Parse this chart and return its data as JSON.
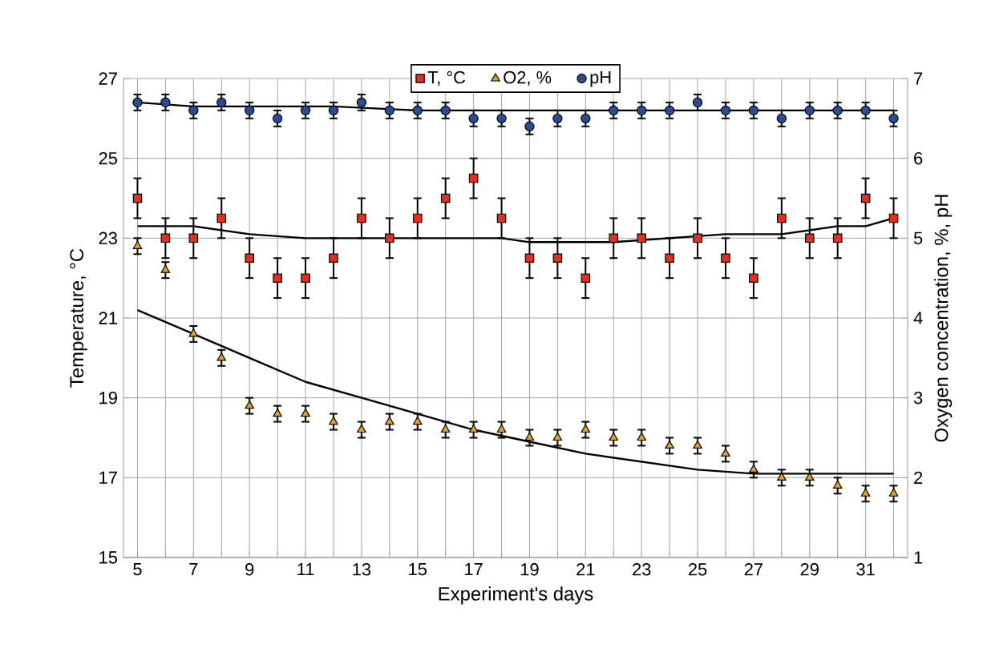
{
  "chart_data": {
    "type": "scatter",
    "xlabel": "Experiment's days",
    "ylabel": "Temperature, °C",
    "y2label": "Oxygen concentration, %, pH",
    "x": [
      5,
      6,
      7,
      8,
      9,
      10,
      11,
      12,
      13,
      14,
      15,
      16,
      17,
      18,
      19,
      20,
      21,
      22,
      23,
      24,
      25,
      26,
      27,
      28,
      29,
      30,
      31,
      32
    ],
    "series": [
      {
        "name": "T, °C",
        "color": "#e03020",
        "marker": "square",
        "values": [
          24,
          23,
          23,
          23.5,
          22.5,
          22,
          22,
          22.5,
          23.5,
          23,
          23.5,
          24,
          24.5,
          23.5,
          22.5,
          22.5,
          22,
          23,
          23,
          22.5,
          23,
          22.5,
          22,
          23.5,
          23,
          23,
          24,
          23.5
        ],
        "errors": [
          0.5,
          0.5,
          0.5,
          0.5,
          0.5,
          0.5,
          0.5,
          0.5,
          0.5,
          0.5,
          0.5,
          0.5,
          0.5,
          0.5,
          0.5,
          0.5,
          0.5,
          0.5,
          0.5,
          0.5,
          0.5,
          0.5,
          0.5,
          0.5,
          0.5,
          0.5,
          0.5,
          0.5
        ]
      },
      {
        "name": "O2, %",
        "color": "#e8a020",
        "marker": "triangle",
        "axis": "y2",
        "values": [
          4.9,
          4.6,
          3.8,
          3.5,
          2.9,
          2.8,
          2.8,
          2.7,
          2.6,
          2.7,
          2.7,
          2.6,
          2.6,
          2.6,
          2.5,
          2.5,
          2.6,
          2.5,
          2.5,
          2.4,
          2.4,
          2.3,
          2.1,
          2.0,
          2.0,
          1.9,
          1.8,
          1.8
        ],
        "errors": [
          0.1,
          0.1,
          0.1,
          0.1,
          0.1,
          0.1,
          0.1,
          0.1,
          0.1,
          0.1,
          0.1,
          0.1,
          0.1,
          0.1,
          0.1,
          0.1,
          0.1,
          0.1,
          0.1,
          0.1,
          0.1,
          0.1,
          0.1,
          0.1,
          0.1,
          0.1,
          0.1,
          0.1
        ]
      },
      {
        "name": "pH",
        "color": "#2a4a9a",
        "marker": "circle",
        "axis": "y2",
        "values": [
          6.7,
          6.7,
          6.6,
          6.7,
          6.6,
          6.5,
          6.6,
          6.6,
          6.7,
          6.6,
          6.6,
          6.6,
          6.5,
          6.5,
          6.4,
          6.5,
          6.5,
          6.6,
          6.6,
          6.6,
          6.7,
          6.6,
          6.6,
          6.5,
          6.6,
          6.6,
          6.6,
          6.5
        ],
        "errors": [
          0.1,
          0.1,
          0.1,
          0.1,
          0.1,
          0.1,
          0.1,
          0.1,
          0.1,
          0.1,
          0.1,
          0.1,
          0.1,
          0.1,
          0.1,
          0.1,
          0.1,
          0.1,
          0.1,
          0.1,
          0.1,
          0.1,
          0.1,
          0.1,
          0.1,
          0.1,
          0.1,
          0.1
        ]
      },
      {
        "type": "line",
        "color": "#000000",
        "marker": "none",
        "x": [
          5,
          7,
          9,
          11,
          13,
          18,
          19,
          22,
          24,
          26,
          28,
          30,
          31,
          32
        ],
        "values": [
          23.3,
          23.3,
          23.1,
          23.0,
          23.0,
          23.0,
          22.9,
          22.9,
          23.0,
          23.1,
          23.1,
          23.3,
          23.3,
          23.5
        ]
      },
      {
        "type": "line",
        "color": "#000000",
        "marker": "none",
        "axis": "y2",
        "x": [
          5,
          7,
          9,
          11,
          13,
          15,
          17,
          19,
          21,
          23,
          25,
          27,
          32
        ],
        "values": [
          4.1,
          3.8,
          3.5,
          3.2,
          3.0,
          2.8,
          2.6,
          2.45,
          2.3,
          2.2,
          2.1,
          2.05,
          2.05
        ]
      },
      {
        "type": "line",
        "color": "#000000",
        "marker": "none",
        "axis": "y2",
        "x": [
          5,
          7,
          12,
          15,
          32
        ],
        "values": [
          6.7,
          6.65,
          6.65,
          6.6,
          6.6
        ]
      }
    ],
    "xlim": [
      4.5,
      32.5
    ],
    "xticks": [
      5,
      {
        "value": 6,
        "label": null
      },
      7,
      {
        "value": 8,
        "label": null
      },
      9,
      {
        "value": 10,
        "label": null
      },
      11,
      {
        "value": 12,
        "label": null
      },
      13,
      {
        "value": 14,
        "label": null
      },
      15,
      {
        "value": 16,
        "label": null
      },
      17,
      {
        "value": 18,
        "label": null
      },
      19,
      {
        "value": 20,
        "label": null
      },
      21,
      {
        "value": 22,
        "label": null
      },
      23,
      {
        "value": 24,
        "label": null
      },
      25,
      {
        "value": 26,
        "label": null
      },
      27,
      {
        "value": 28,
        "label": null
      },
      29,
      {
        "value": 30,
        "label": null
      },
      31,
      {
        "value": 32,
        "label": null
      }
    ],
    "ylim": [
      15,
      27
    ],
    "yticks": [
      15,
      17,
      19,
      21,
      23,
      25,
      27
    ],
    "y2lim": [
      1,
      7
    ],
    "y2ticks": [
      1,
      2,
      3,
      4,
      5,
      6,
      7
    ],
    "grid": true,
    "legend": "top"
  }
}
